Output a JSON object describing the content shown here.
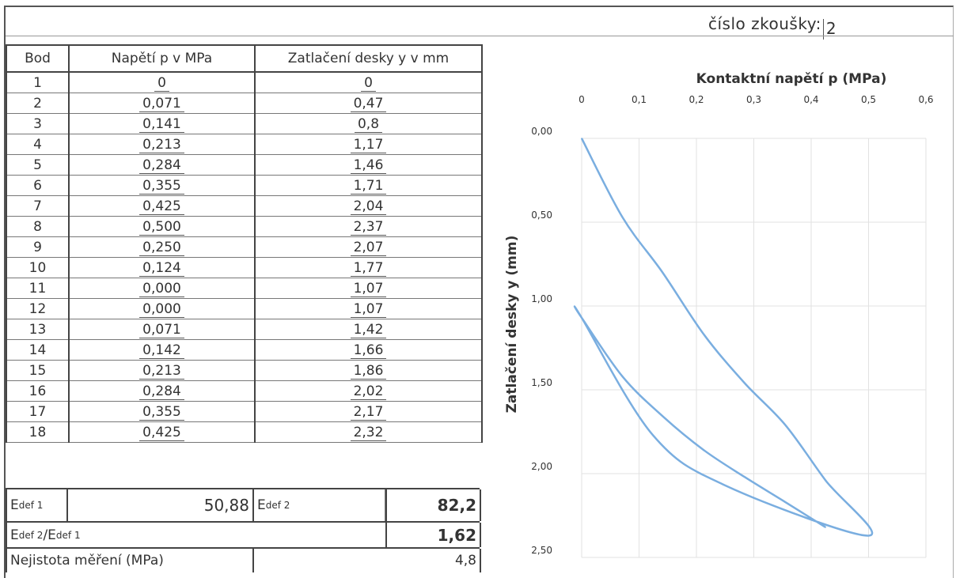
{
  "header": {
    "test_number_label": "číslo zkoušky:",
    "test_number_value": "2"
  },
  "table": {
    "headers": [
      "Bod",
      "Napětí p v MPa",
      "Zatlačení desky y v mm"
    ],
    "rows": [
      [
        "1",
        "0",
        "0"
      ],
      [
        "2",
        "0,071",
        "0,47"
      ],
      [
        "3",
        "0,141",
        "0,8"
      ],
      [
        "4",
        "0,213",
        "1,17"
      ],
      [
        "5",
        "0,284",
        "1,46"
      ],
      [
        "6",
        "0,355",
        "1,71"
      ],
      [
        "7",
        "0,425",
        "2,04"
      ],
      [
        "8",
        "0,500",
        "2,37"
      ],
      [
        "9",
        "0,250",
        "2,07"
      ],
      [
        "10",
        "0,124",
        "1,77"
      ],
      [
        "11",
        "0,000",
        "1,07"
      ],
      [
        "12",
        "0,000",
        "1,07"
      ],
      [
        "13",
        "0,071",
        "1,42"
      ],
      [
        "14",
        "0,142",
        "1,66"
      ],
      [
        "15",
        "0,213",
        "1,86"
      ],
      [
        "16",
        "0,284",
        "2,02"
      ],
      [
        "17",
        "0,355",
        "2,17"
      ],
      [
        "18",
        "0,425",
        "2,32"
      ]
    ]
  },
  "summary": {
    "edef1_label": "E",
    "edef1_sub": "def 1",
    "edef1_value": "50,88",
    "edef2_label": "E",
    "edef2_sub": "def 2",
    "edef2_value": "82,2",
    "ratio_label_a": "E",
    "ratio_sub_a": "def 2",
    "ratio_slash": "/E",
    "ratio_sub_b": "def 1",
    "ratio_value": "1,62",
    "uncertainty_label": "Nejistota měření (MPa)",
    "uncertainty_value": "4,8"
  },
  "chart_data": {
    "type": "line",
    "title": "Kontaktní napětí p (MPa)",
    "xlabel": "Kontaktní napětí p (MPa)",
    "ylabel": "Zatlačení desky y (mm)",
    "x_ticks": [
      "0",
      "0,1",
      "0,2",
      "0,3",
      "0,4",
      "0,5",
      "0,6"
    ],
    "y_ticks": [
      "0,00",
      "0,50",
      "1,00",
      "1,50",
      "2,00",
      "2,50"
    ],
    "xlim": [
      0,
      0.6
    ],
    "ylim": [
      0,
      2.5
    ],
    "y_inverted": true,
    "x_axis_position": "top",
    "grid": true,
    "line_color": "#7aaee0",
    "series": [
      {
        "x": [
          0,
          0.071,
          0.141,
          0.213,
          0.284,
          0.355,
          0.425,
          0.5,
          0.25,
          0.124,
          0.0,
          0.0,
          0.071,
          0.142,
          0.213,
          0.284,
          0.355,
          0.425
        ],
        "y": [
          0,
          0.47,
          0.8,
          1.17,
          1.46,
          1.71,
          2.04,
          2.37,
          2.07,
          1.77,
          1.07,
          1.07,
          1.42,
          1.66,
          1.86,
          2.02,
          2.17,
          2.32
        ]
      }
    ]
  }
}
